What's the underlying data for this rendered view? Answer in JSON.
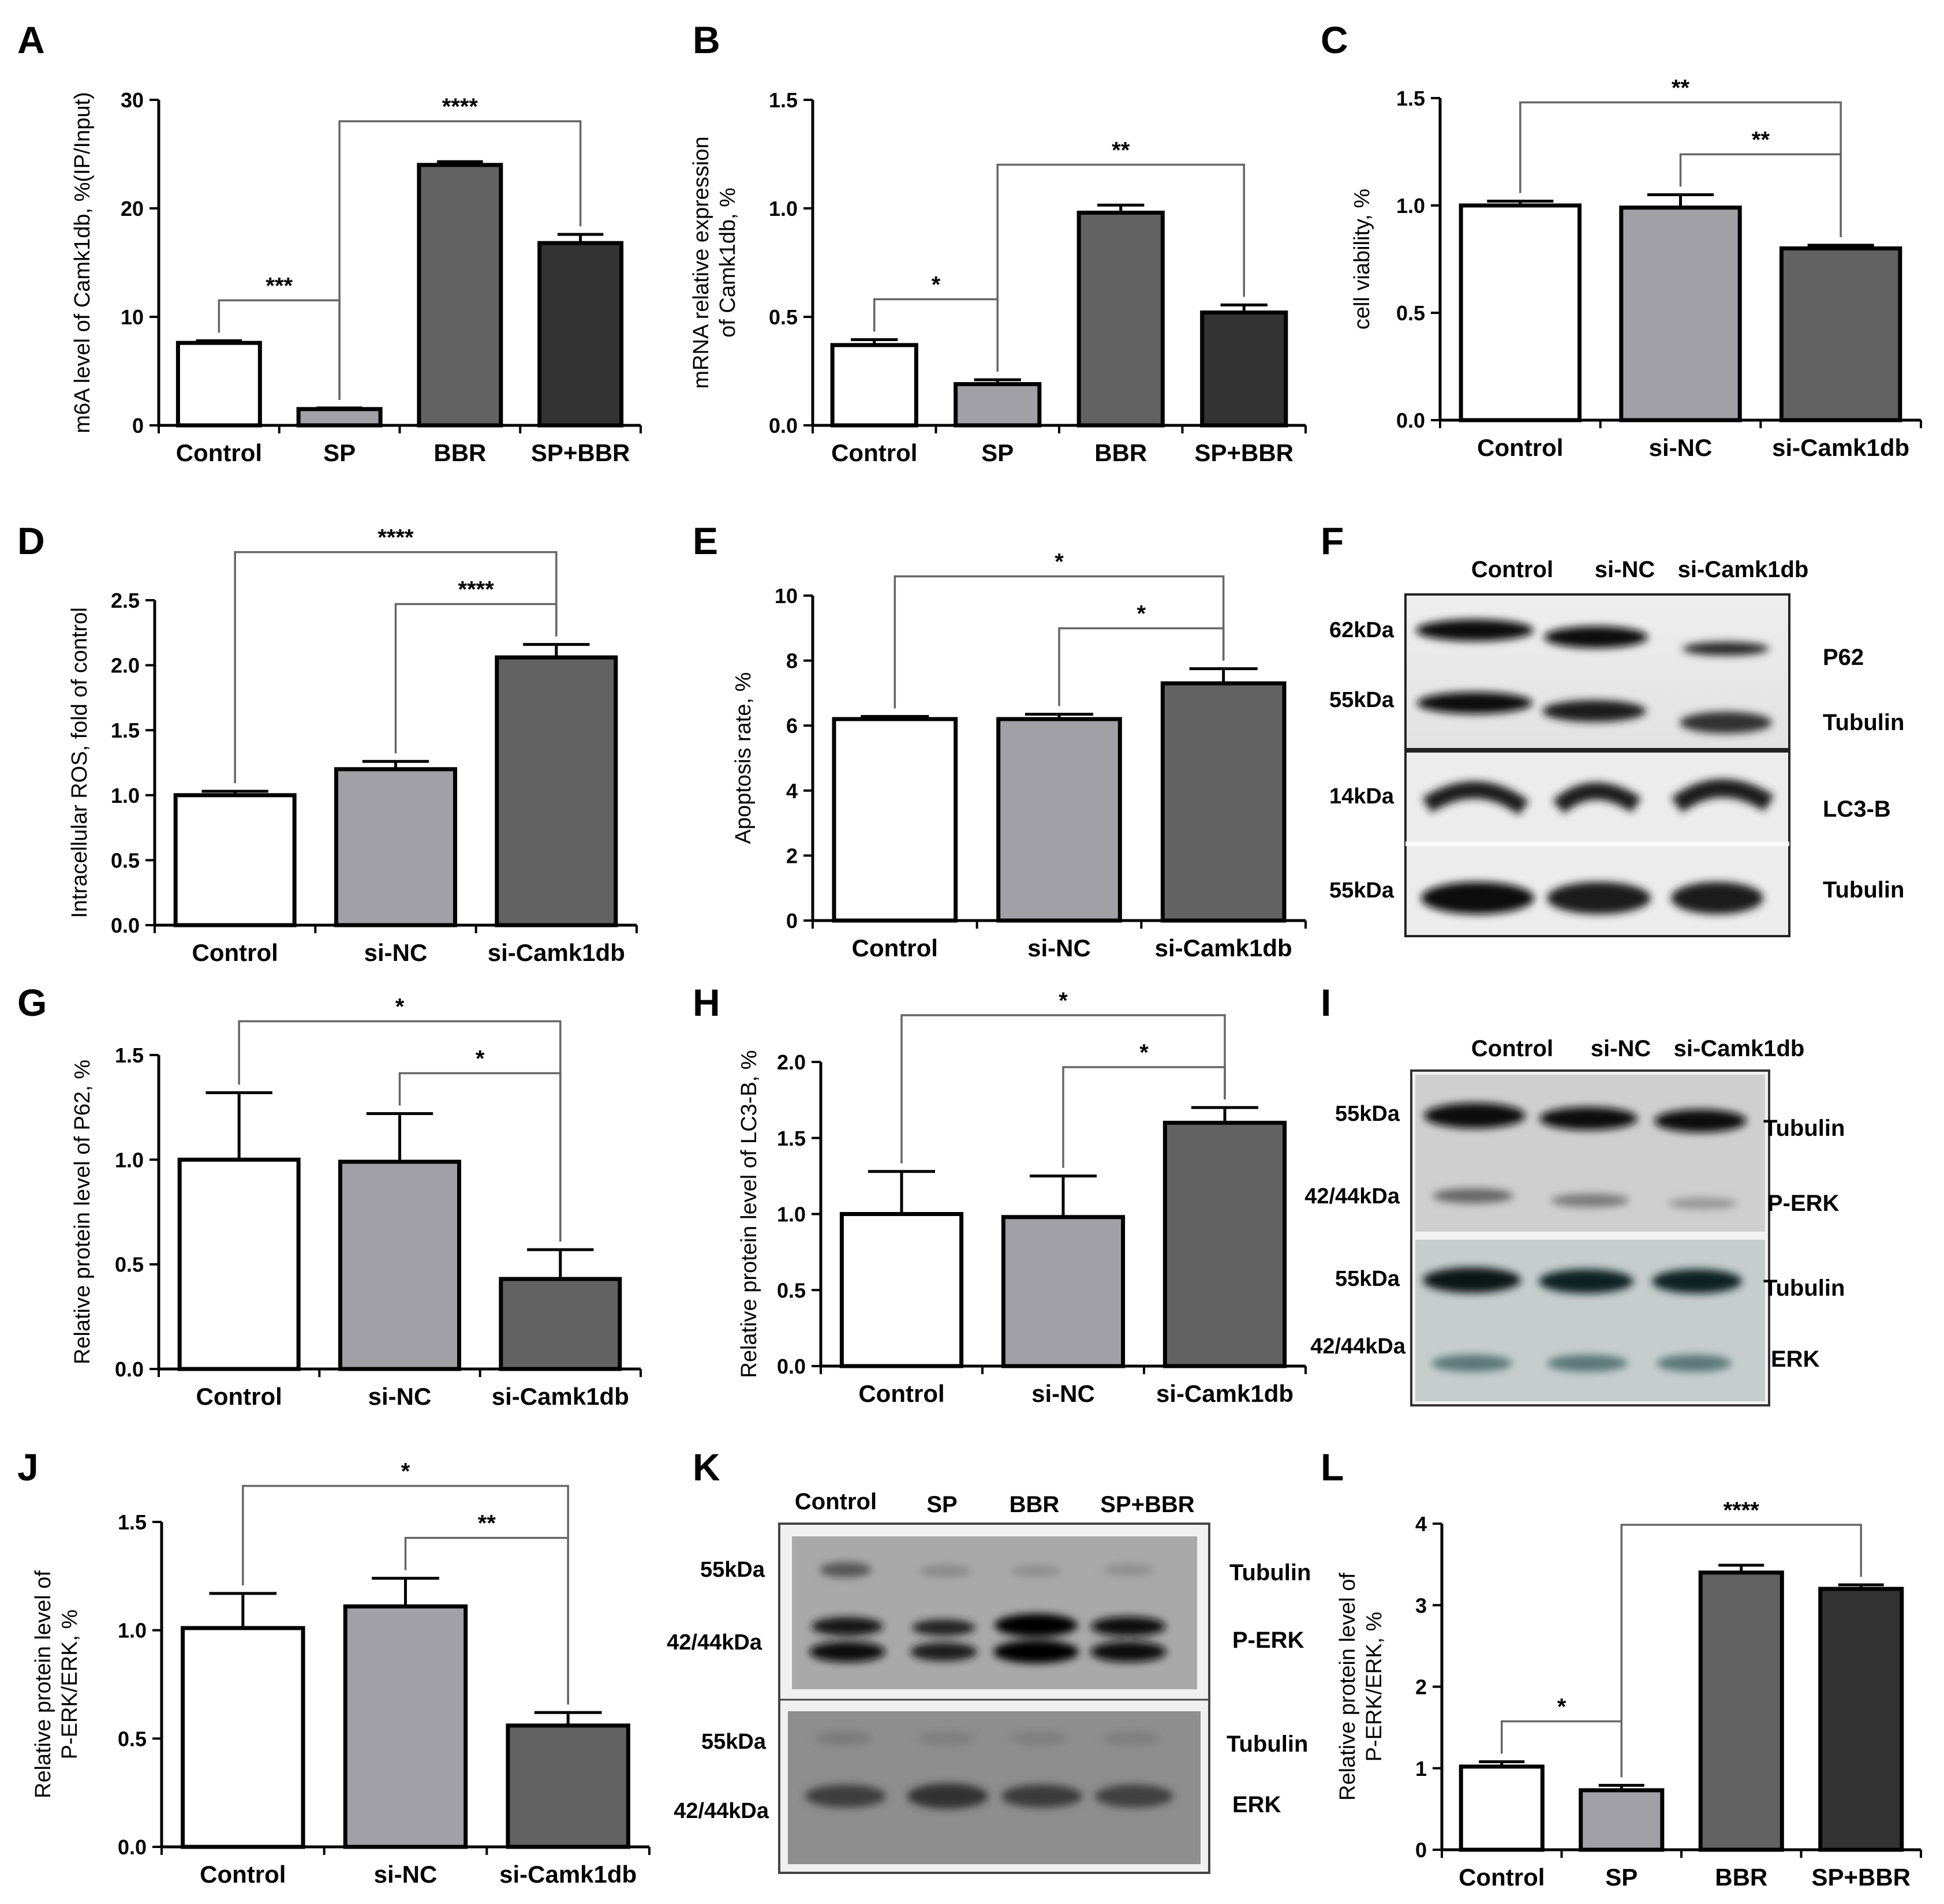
{
  "colors": {
    "Control": "#ffffff",
    "SP": "#a0a0a6",
    "si-NC": "#a0a0a6",
    "BBR": "#626262",
    "si-Camk1db": "#626262",
    "SP+BBR": "#333333"
  },
  "letters": [
    "A",
    "B",
    "C",
    "D",
    "E",
    "F",
    "G",
    "H",
    "I",
    "J",
    "K",
    "L"
  ],
  "chart_data": [
    {
      "panel": "A",
      "type": "bar",
      "categories": [
        "Control",
        "SP",
        "BBR",
        "SP+BBR"
      ],
      "values": [
        7.6,
        1.5,
        24.0,
        16.8
      ],
      "errors": [
        0.2,
        0.1,
        0.3,
        0.8
      ],
      "ylabel": "m6A level of Camk1db, %(IP/Input)",
      "ylim": [
        0,
        30
      ],
      "yticks": [
        "0",
        "10",
        "20",
        "30"
      ],
      "brackets": [
        {
          "from": 0,
          "to": 1,
          "label": "***"
        },
        {
          "from": 1,
          "to": 3,
          "label": "****"
        }
      ]
    },
    {
      "panel": "B",
      "type": "bar",
      "categories": [
        "Control",
        "SP",
        "BBR",
        "SP+BBR"
      ],
      "values": [
        0.37,
        0.19,
        0.98,
        0.52
      ],
      "errors": [
        0.025,
        0.02,
        0.035,
        0.035
      ],
      "ylabel": [
        "mRNA relative expression",
        "of Camk1db, %"
      ],
      "ylim": [
        0,
        1.5
      ],
      "yticks": [
        "0.0",
        "0.5",
        "1.0",
        "1.5"
      ],
      "brackets": [
        {
          "from": 0,
          "to": 1,
          "label": "*"
        },
        {
          "from": 1,
          "to": 3,
          "label": "**"
        }
      ]
    },
    {
      "panel": "C",
      "type": "bar",
      "categories": [
        "Control",
        "si-NC",
        "si-Camk1db"
      ],
      "values": [
        1.0,
        0.99,
        0.8
      ],
      "errors": [
        0.02,
        0.06,
        0.015
      ],
      "ylabel": "cell viability, %",
      "ylim": [
        0,
        1.5
      ],
      "yticks": [
        "0.0",
        "0.5",
        "1.0",
        "1.5"
      ],
      "brackets": [
        {
          "from": 0,
          "to": 2,
          "label": "**"
        },
        {
          "from": 1,
          "to": 2,
          "label": "**"
        }
      ]
    },
    {
      "panel": "D",
      "type": "bar",
      "categories": [
        "Control",
        "si-NC",
        "si-Camk1db"
      ],
      "values": [
        1.0,
        1.2,
        2.06
      ],
      "errors": [
        0.03,
        0.06,
        0.1
      ],
      "ylabel": "Intracellular ROS, fold of control",
      "ylim": [
        0,
        2.5
      ],
      "yticks": [
        "0.0",
        "0.5",
        "1.0",
        "1.5",
        "2.0",
        "2.5"
      ],
      "brackets": [
        {
          "from": 0,
          "to": 2,
          "label": "****"
        },
        {
          "from": 1,
          "to": 2,
          "label": "****"
        }
      ]
    },
    {
      "panel": "E",
      "type": "bar",
      "categories": [
        "Control",
        "si-NC",
        "si-Camk1db"
      ],
      "values": [
        6.2,
        6.2,
        7.3
      ],
      "errors": [
        0.08,
        0.15,
        0.45
      ],
      "ylabel": "Apoptosis rate, %",
      "ylim": [
        0,
        10
      ],
      "yticks": [
        "0",
        "2",
        "4",
        "6",
        "8",
        "10"
      ],
      "brackets": [
        {
          "from": 0,
          "to": 2,
          "label": "*"
        },
        {
          "from": 1,
          "to": 2,
          "label": "*"
        }
      ]
    },
    {
      "panel": "G",
      "type": "bar",
      "categories": [
        "Control",
        "si-NC",
        "si-Camk1db"
      ],
      "values": [
        1.0,
        0.99,
        0.43
      ],
      "errors": [
        0.32,
        0.23,
        0.14
      ],
      "ylabel": "Relative protein level of P62, %",
      "ylim": [
        0,
        1.5
      ],
      "yticks": [
        "0.0",
        "0.5",
        "1.0",
        "1.5"
      ],
      "brackets": [
        {
          "from": 0,
          "to": 2,
          "label": "*"
        },
        {
          "from": 1,
          "to": 2,
          "label": "*"
        }
      ]
    },
    {
      "panel": "H",
      "type": "bar",
      "categories": [
        "Control",
        "si-NC",
        "si-Camk1db"
      ],
      "values": [
        1.0,
        0.98,
        1.6
      ],
      "errors": [
        0.28,
        0.27,
        0.1
      ],
      "ylabel": "Relative protein level of LC3-B, %",
      "ylim": [
        0,
        2.0
      ],
      "yticks": [
        "0.0",
        "0.5",
        "1.0",
        "1.5",
        "2.0"
      ],
      "brackets": [
        {
          "from": 0,
          "to": 2,
          "label": "*"
        },
        {
          "from": 1,
          "to": 2,
          "label": "*"
        }
      ]
    },
    {
      "panel": "J",
      "type": "bar",
      "categories": [
        "Control",
        "si-NC",
        "si-Camk1db"
      ],
      "values": [
        1.01,
        1.11,
        0.56
      ],
      "errors": [
        0.16,
        0.13,
        0.06
      ],
      "ylabel": [
        "Relative protein level of",
        "P-ERK/ERK, %"
      ],
      "ylim": [
        0,
        1.5
      ],
      "yticks": [
        "0.0",
        "0.5",
        "1.0",
        "1.5"
      ],
      "brackets": [
        {
          "from": 0,
          "to": 2,
          "label": "*"
        },
        {
          "from": 1,
          "to": 2,
          "label": "**"
        }
      ]
    },
    {
      "panel": "L",
      "type": "bar",
      "categories": [
        "Control",
        "SP",
        "BBR",
        "SP+BBR"
      ],
      "values": [
        1.02,
        0.73,
        3.4,
        3.2
      ],
      "errors": [
        0.06,
        0.06,
        0.09,
        0.05
      ],
      "ylabel": [
        "Relative protein level of",
        "P-ERK/ERK, %"
      ],
      "ylim": [
        0,
        4
      ],
      "yticks": [
        "0",
        "1",
        "2",
        "3",
        "4"
      ],
      "brackets": [
        {
          "from": 0,
          "to": 1,
          "label": "*"
        },
        {
          "from": 1,
          "to": 3,
          "label": "****"
        }
      ]
    }
  ],
  "blots": [
    {
      "panel": "F",
      "lanes": [
        "Control",
        "si-NC",
        "si-Camk1db"
      ],
      "kda": [
        "62kDa",
        "55kDa",
        "14kDa",
        "55kDa"
      ],
      "proteins": [
        "P62",
        "Tubulin",
        "LC3-B",
        "Tubulin"
      ]
    },
    {
      "panel": "I",
      "lanes": [
        "Control",
        "si-NC",
        "si-Camk1db"
      ],
      "kda": [
        "55kDa",
        "42/44kDa",
        "55kDa",
        "42/44kDa"
      ],
      "proteins": [
        "Tubulin",
        "P-ERK",
        "Tubulin",
        "ERK"
      ]
    },
    {
      "panel": "K",
      "lanes": [
        "Control",
        "SP",
        "BBR",
        "SP+BBR"
      ],
      "kda": [
        "55kDa",
        "42/44kDa",
        "55kDa",
        "42/44kDa"
      ],
      "proteins": [
        "Tubulin",
        "P-ERK",
        "Tubulin",
        "ERK"
      ]
    }
  ]
}
